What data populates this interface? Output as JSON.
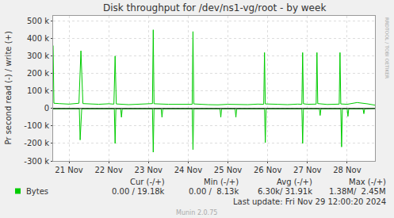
{
  "chart_data": {
    "type": "line",
    "title": "Disk throughput for /dev/ns1-vg/root - by week",
    "y_label": "Pr second read (-) / write (+)",
    "xlim": [
      20.6,
      28.7
    ],
    "xticks": [
      {
        "value": 21,
        "label": "21 Nov"
      },
      {
        "value": 22,
        "label": "22 Nov"
      },
      {
        "value": 23,
        "label": "23 Nov"
      },
      {
        "value": 24,
        "label": "24 Nov"
      },
      {
        "value": 25,
        "label": "25 Nov"
      },
      {
        "value": 26,
        "label": "26 Nov"
      },
      {
        "value": 27,
        "label": "27 Nov"
      },
      {
        "value": 28,
        "label": "28 Nov"
      }
    ],
    "ylim": [
      -300000,
      530000
    ],
    "yticks": [
      {
        "value": -300000,
        "label": "-300 k"
      },
      {
        "value": -200000,
        "label": "-200 k"
      },
      {
        "value": -100000,
        "label": "-100 k"
      },
      0,
      {
        "value": 100000,
        "label": "100 k"
      },
      {
        "value": 200000,
        "label": "200 k"
      },
      {
        "value": 300000,
        "label": "300 k"
      },
      {
        "value": 400000,
        "label": "400 k"
      },
      {
        "value": 500000,
        "label": "500 k"
      }
    ],
    "grid": true,
    "series": [
      {
        "name": "Bytes",
        "color": "#00cc00",
        "x": [
          20.6,
          20.62,
          20.75,
          21.0,
          21.25,
          21.3,
          21.35,
          21.5,
          21.75,
          22.0,
          22.13,
          22.16,
          22.19,
          22.5,
          22.75,
          23.0,
          23.1,
          23.12,
          23.14,
          23.5,
          23.75,
          24.0,
          24.1,
          24.12,
          24.14,
          24.5,
          24.75,
          25.0,
          25.25,
          25.5,
          25.75,
          25.9,
          25.92,
          25.94,
          26.25,
          26.5,
          26.75,
          26.86,
          26.88,
          26.9,
          27.0,
          27.22,
          27.24,
          27.26,
          27.5,
          27.75,
          27.8,
          27.82,
          27.84,
          28.0,
          28.25,
          28.5,
          28.7
        ],
        "values": [
          360000,
          30000,
          28000,
          25000,
          30000,
          330000,
          28000,
          26000,
          24000,
          27000,
          25000,
          300000,
          26000,
          22000,
          25000,
          26000,
          28000,
          450000,
          27000,
          24000,
          23000,
          25000,
          24000,
          440000,
          26000,
          22000,
          21000,
          24000,
          23000,
          22000,
          25000,
          24000,
          320000,
          26000,
          24000,
          22000,
          25000,
          24000,
          320000,
          27000,
          24000,
          25000,
          320000,
          28000,
          23000,
          24000,
          25000,
          320000,
          26000,
          24000,
          34000,
          27000,
          19180
        ]
      },
      {
        "name": "Bytes",
        "color": "#00cc00",
        "x": [
          20.6,
          21.26,
          21.28,
          21.3,
          21.32,
          22.14,
          22.16,
          22.18,
          22.3,
          22.32,
          22.34,
          23.1,
          23.12,
          23.14,
          23.32,
          23.34,
          23.36,
          24.1,
          24.12,
          24.14,
          24.8,
          24.82,
          24.84,
          25.18,
          25.2,
          25.22,
          25.92,
          25.94,
          25.96,
          26.86,
          26.88,
          26.9,
          27.3,
          27.32,
          27.34,
          27.84,
          27.86,
          27.88,
          28.0,
          28.02,
          28.04,
          28.4,
          28.42,
          28.44,
          28.7
        ],
        "values": [
          -2000,
          -2000,
          -180000,
          -60000,
          -2000,
          -2000,
          -200000,
          -2000,
          -2000,
          -50000,
          -2000,
          -2000,
          -250000,
          -2000,
          -2000,
          -50000,
          -2000,
          -2000,
          -235000,
          -2000,
          -2000,
          -50000,
          -2000,
          -2000,
          -50000,
          -2000,
          -2000,
          -195000,
          -2000,
          -2000,
          -200000,
          -2000,
          -2000,
          -40000,
          -2000,
          -2000,
          -220000,
          -2000,
          -2000,
          -45000,
          -2000,
          -2000,
          -30000,
          -2000,
          0
        ]
      }
    ],
    "legend_table": {
      "columns": [
        "Cur (-/+)",
        "Min (-/+)",
        "Avg (-/+)",
        "Max (-/+)"
      ],
      "rows": [
        {
          "name": "Bytes",
          "color": "#00cc00",
          "cells": [
            "0.00 / 19.18k",
            "0.00 /  8.13k",
            "6.30k/ 31.91k",
            "1.38M/  2.45M"
          ]
        }
      ]
    },
    "footer": "Last update: Fri Nov 29 12:00:20 2024",
    "credit": "Munin 2.0.75",
    "side_text": "RRDTOOL / TOBI OETIKER"
  }
}
